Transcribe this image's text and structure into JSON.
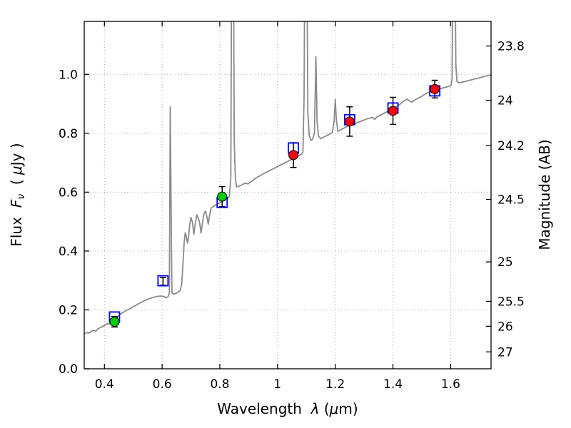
{
  "labels": {
    "x": [
      "Wavelength  ",
      "λ",
      " (",
      "μ",
      "m)"
    ],
    "y_left": [
      "Flux  ",
      "F",
      "ν",
      "  ( ",
      "μ",
      "Jy )"
    ],
    "y_right": "Magnitude (AB)"
  },
  "figure_colors": {
    "spectrum": "#8a8a8a",
    "model_square": "#0000ff",
    "observed_green": "#00cc00",
    "observed_red": "#ff0000",
    "errorbar": "#000000",
    "grid": "#a8a8a8",
    "spine": "#000000"
  },
  "chart_data": {
    "type": "line",
    "title": "",
    "xlabel": "Wavelength λ (μm)",
    "ylabel": "Flux Fν ( μJy )",
    "ylabel_right": "Magnitude (AB)",
    "xlim": [
      0.33,
      1.74
    ],
    "ylim": [
      0.0,
      1.18
    ],
    "grid": "dotted",
    "legend": "none",
    "x_ticks": [
      {
        "value": 0.4,
        "label": "0.4"
      },
      {
        "value": 0.6,
        "label": "0.6"
      },
      {
        "value": 0.8,
        "label": "0.8"
      },
      {
        "value": 1.0,
        "label": "1"
      },
      {
        "value": 1.2,
        "label": "1.2"
      },
      {
        "value": 1.4,
        "label": "1.4"
      },
      {
        "value": 1.6,
        "label": "1.6"
      }
    ],
    "y_ticks": [
      {
        "value": 0.0,
        "label": "0.0"
      },
      {
        "value": 0.2,
        "label": "0.2"
      },
      {
        "value": 0.4,
        "label": "0.4"
      },
      {
        "value": 0.6,
        "label": "0.6"
      },
      {
        "value": 0.8,
        "label": "0.8"
      },
      {
        "value": 1.0,
        "label": "1.0"
      }
    ],
    "y_ticks_right": [
      {
        "label": "23.8",
        "mag": 23.8,
        "flux_pos": 1.0965
      },
      {
        "label": "24",
        "mag": 24.0,
        "flux_pos": 0.912
      },
      {
        "label": "24.2",
        "mag": 24.2,
        "flux_pos": 0.7586
      },
      {
        "label": "24.5",
        "mag": 24.5,
        "flux_pos": 0.5754
      },
      {
        "label": "25",
        "mag": 25.0,
        "flux_pos": 0.3631
      },
      {
        "label": "25.5",
        "mag": 25.5,
        "flux_pos": 0.2291
      },
      {
        "label": "26",
        "mag": 26.0,
        "flux_pos": 0.1445
      },
      {
        "label": "27",
        "mag": 27.0,
        "flux_pos": 0.0575
      }
    ],
    "series": [
      {
        "name": "best-fit-model-spectrum",
        "type": "line",
        "color": "#8a8a8a",
        "linewidth": 1.8,
        "points": [
          [
            0.33,
            0.118
          ],
          [
            0.338,
            0.123
          ],
          [
            0.346,
            0.121
          ],
          [
            0.354,
            0.127
          ],
          [
            0.362,
            0.131
          ],
          [
            0.37,
            0.128
          ],
          [
            0.378,
            0.136
          ],
          [
            0.386,
            0.14
          ],
          [
            0.394,
            0.144
          ],
          [
            0.402,
            0.148
          ],
          [
            0.41,
            0.154
          ],
          [
            0.416,
            0.151
          ],
          [
            0.424,
            0.158
          ],
          [
            0.432,
            0.162
          ],
          [
            0.44,
            0.168
          ],
          [
            0.448,
            0.178
          ],
          [
            0.456,
            0.186
          ],
          [
            0.464,
            0.191
          ],
          [
            0.472,
            0.196
          ],
          [
            0.48,
            0.2
          ],
          [
            0.488,
            0.204
          ],
          [
            0.496,
            0.209
          ],
          [
            0.504,
            0.213
          ],
          [
            0.512,
            0.217
          ],
          [
            0.52,
            0.222
          ],
          [
            0.528,
            0.226
          ],
          [
            0.536,
            0.23
          ],
          [
            0.544,
            0.233
          ],
          [
            0.552,
            0.237
          ],
          [
            0.56,
            0.24
          ],
          [
            0.568,
            0.242
          ],
          [
            0.576,
            0.244
          ],
          [
            0.584,
            0.246
          ],
          [
            0.592,
            0.247
          ],
          [
            0.6,
            0.247
          ],
          [
            0.608,
            0.245
          ],
          [
            0.614,
            0.241
          ],
          [
            0.62,
            0.244
          ],
          [
            0.625,
            0.258
          ],
          [
            0.628,
            0.89
          ],
          [
            0.631,
            0.56
          ],
          [
            0.634,
            0.258
          ],
          [
            0.64,
            0.253
          ],
          [
            0.648,
            0.256
          ],
          [
            0.656,
            0.261
          ],
          [
            0.663,
            0.267
          ],
          [
            0.668,
            0.288
          ],
          [
            0.672,
            0.355
          ],
          [
            0.676,
            0.425
          ],
          [
            0.68,
            0.462
          ],
          [
            0.684,
            0.448
          ],
          [
            0.688,
            0.427
          ],
          [
            0.692,
            0.452
          ],
          [
            0.696,
            0.492
          ],
          [
            0.7,
            0.514
          ],
          [
            0.705,
            0.497
          ],
          [
            0.71,
            0.457
          ],
          [
            0.715,
            0.494
          ],
          [
            0.72,
            0.523
          ],
          [
            0.725,
            0.513
          ],
          [
            0.73,
            0.496
          ],
          [
            0.735,
            0.461
          ],
          [
            0.74,
            0.497
          ],
          [
            0.745,
            0.526
          ],
          [
            0.75,
            0.536
          ],
          [
            0.755,
            0.517
          ],
          [
            0.76,
            0.491
          ],
          [
            0.765,
            0.526
          ],
          [
            0.77,
            0.546
          ],
          [
            0.778,
            0.552
          ],
          [
            0.786,
            0.557
          ],
          [
            0.794,
            0.561
          ],
          [
            0.802,
            0.565
          ],
          [
            0.81,
            0.569
          ],
          [
            0.818,
            0.573
          ],
          [
            0.826,
            0.578
          ],
          [
            0.833,
            0.585
          ],
          [
            0.838,
            0.65
          ],
          [
            0.841,
            1.5
          ],
          [
            0.847,
            1.5
          ],
          [
            0.85,
            0.77
          ],
          [
            0.854,
            0.645
          ],
          [
            0.858,
            0.618
          ],
          [
            0.866,
            0.62
          ],
          [
            0.874,
            0.624
          ],
          [
            0.882,
            0.628
          ],
          [
            0.89,
            0.631
          ],
          [
            0.898,
            0.628
          ],
          [
            0.906,
            0.634
          ],
          [
            0.914,
            0.64
          ],
          [
            0.922,
            0.646
          ],
          [
            0.93,
            0.651
          ],
          [
            0.938,
            0.655
          ],
          [
            0.946,
            0.66
          ],
          [
            0.954,
            0.664
          ],
          [
            0.962,
            0.668
          ],
          [
            0.97,
            0.672
          ],
          [
            0.978,
            0.676
          ],
          [
            0.986,
            0.68
          ],
          [
            0.994,
            0.684
          ],
          [
            1.002,
            0.688
          ],
          [
            1.01,
            0.692
          ],
          [
            1.018,
            0.696
          ],
          [
            1.026,
            0.7
          ],
          [
            1.034,
            0.704
          ],
          [
            1.042,
            0.708
          ],
          [
            1.05,
            0.712
          ],
          [
            1.058,
            0.716
          ],
          [
            1.066,
            0.72
          ],
          [
            1.074,
            0.724
          ],
          [
            1.082,
            0.728
          ],
          [
            1.088,
            0.736
          ],
          [
            1.092,
            0.92
          ],
          [
            1.095,
            1.5
          ],
          [
            1.101,
            1.5
          ],
          [
            1.105,
            0.87
          ],
          [
            1.11,
            0.792
          ],
          [
            1.116,
            0.776
          ],
          [
            1.122,
            0.781
          ],
          [
            1.128,
            0.802
          ],
          [
            1.133,
            1.06
          ],
          [
            1.137,
            0.842
          ],
          [
            1.142,
            0.79
          ],
          [
            1.15,
            0.782
          ],
          [
            1.158,
            0.786
          ],
          [
            1.166,
            0.79
          ],
          [
            1.174,
            0.794
          ],
          [
            1.182,
            0.798
          ],
          [
            1.19,
            0.803
          ],
          [
            1.196,
            0.842
          ],
          [
            1.2,
            0.915
          ],
          [
            1.204,
            0.846
          ],
          [
            1.209,
            0.807
          ],
          [
            1.217,
            0.811
          ],
          [
            1.225,
            0.815
          ],
          [
            1.233,
            0.819
          ],
          [
            1.241,
            0.823
          ],
          [
            1.249,
            0.826
          ],
          [
            1.257,
            0.829
          ],
          [
            1.265,
            0.832
          ],
          [
            1.273,
            0.835
          ],
          [
            1.281,
            0.838
          ],
          [
            1.289,
            0.841
          ],
          [
            1.297,
            0.844
          ],
          [
            1.305,
            0.847
          ],
          [
            1.313,
            0.85
          ],
          [
            1.321,
            0.852
          ],
          [
            1.329,
            0.854
          ],
          [
            1.337,
            0.847
          ],
          [
            1.345,
            0.856
          ],
          [
            1.353,
            0.86
          ],
          [
            1.361,
            0.864
          ],
          [
            1.369,
            0.868
          ],
          [
            1.377,
            0.872
          ],
          [
            1.385,
            0.876
          ],
          [
            1.393,
            0.88
          ],
          [
            1.401,
            0.884
          ],
          [
            1.409,
            0.888
          ],
          [
            1.417,
            0.893
          ],
          [
            1.425,
            0.899
          ],
          [
            1.433,
            0.906
          ],
          [
            1.441,
            0.912
          ],
          [
            1.449,
            0.916
          ],
          [
            1.457,
            0.91
          ],
          [
            1.465,
            0.906
          ],
          [
            1.473,
            0.911
          ],
          [
            1.481,
            0.916
          ],
          [
            1.489,
            0.92
          ],
          [
            1.497,
            0.924
          ],
          [
            1.505,
            0.929
          ],
          [
            1.513,
            0.934
          ],
          [
            1.521,
            0.938
          ],
          [
            1.529,
            0.941
          ],
          [
            1.537,
            0.942
          ],
          [
            1.545,
            0.944
          ],
          [
            1.553,
            0.947
          ],
          [
            1.561,
            0.95
          ],
          [
            1.569,
            0.953
          ],
          [
            1.577,
            0.955
          ],
          [
            1.585,
            0.957
          ],
          [
            1.593,
            0.959
          ],
          [
            1.601,
            0.963
          ],
          [
            1.605,
            0.985
          ],
          [
            1.608,
            1.5
          ],
          [
            1.614,
            1.5
          ],
          [
            1.618,
            1.03
          ],
          [
            1.622,
            0.976
          ],
          [
            1.63,
            0.971
          ],
          [
            1.638,
            0.973
          ],
          [
            1.646,
            0.975
          ],
          [
            1.654,
            0.977
          ],
          [
            1.662,
            0.979
          ],
          [
            1.67,
            0.981
          ],
          [
            1.678,
            0.983
          ],
          [
            1.686,
            0.985
          ],
          [
            1.694,
            0.987
          ],
          [
            1.702,
            0.989
          ],
          [
            1.71,
            0.991
          ],
          [
            1.718,
            0.993
          ],
          [
            1.726,
            0.995
          ],
          [
            1.734,
            0.997
          ],
          [
            1.74,
            0.998
          ]
        ]
      },
      {
        "name": "model-photometry",
        "type": "open-square",
        "color": "#0000ff",
        "size": 14,
        "points": [
          {
            "x": 0.435,
            "y": 0.176
          },
          {
            "x": 0.603,
            "y": 0.299
          },
          {
            "x": 0.808,
            "y": 0.565
          },
          {
            "x": 1.055,
            "y": 0.75
          },
          {
            "x": 1.25,
            "y": 0.846
          },
          {
            "x": 1.4,
            "y": 0.886
          },
          {
            "x": 1.545,
            "y": 0.944
          }
        ]
      },
      {
        "name": "observed-photometry",
        "type": "filled-circle",
        "edge_color": "#000000",
        "radius": 6.5,
        "points": [
          {
            "x": 0.435,
            "y": 0.16,
            "err": 0.018,
            "color": "#00cc00"
          },
          {
            "x": 0.603,
            "y": 0.297,
            "err": 0.013,
            "color": "none"
          },
          {
            "x": 0.808,
            "y": 0.585,
            "err": 0.034,
            "color": "#00cc00"
          },
          {
            "x": 1.055,
            "y": 0.726,
            "err": 0.042,
            "color": "#ff0000"
          },
          {
            "x": 1.25,
            "y": 0.84,
            "err": 0.05,
            "color": "#ff0000"
          },
          {
            "x": 1.4,
            "y": 0.876,
            "err": 0.046,
            "color": "#ff0000"
          },
          {
            "x": 1.545,
            "y": 0.95,
            "err": 0.03,
            "color": "#ff0000"
          }
        ]
      }
    ]
  }
}
